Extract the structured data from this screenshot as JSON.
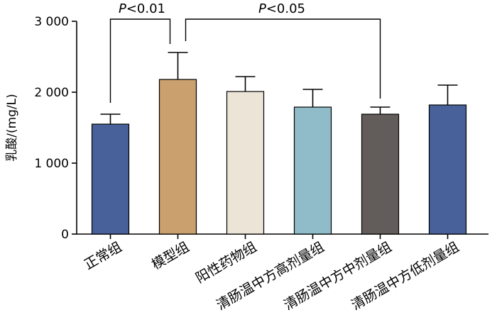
{
  "chart_data": {
    "type": "bar",
    "categories": [
      "正常组",
      "模型组",
      "阳性药物组",
      "清肠温中方高剂量组",
      "清肠温中方中剂量组",
      "清肠温中方低剂量组"
    ],
    "values": [
      1550,
      2180,
      2010,
      1790,
      1690,
      1820
    ],
    "errors": [
      140,
      380,
      210,
      250,
      100,
      280
    ],
    "colors": [
      "#48619a",
      "#c9a06e",
      "#ede4d8",
      "#8fbcc8",
      "#625d5a",
      "#48619a"
    ],
    "ylabel": "乳酸/(mg/L)",
    "ylim": [
      0,
      3000
    ],
    "yticks": [
      0,
      1000,
      2000,
      3000
    ],
    "ytick_labels": [
      "0",
      "1 000",
      "2 000",
      "3 000"
    ],
    "grid": false,
    "annotations": [
      {
        "from": 0,
        "to": 1,
        "text_italic": "P",
        "text_rest": "<0.01"
      },
      {
        "from": 1,
        "to": 4,
        "text_italic": "P",
        "text_rest": "<0.05"
      }
    ]
  }
}
